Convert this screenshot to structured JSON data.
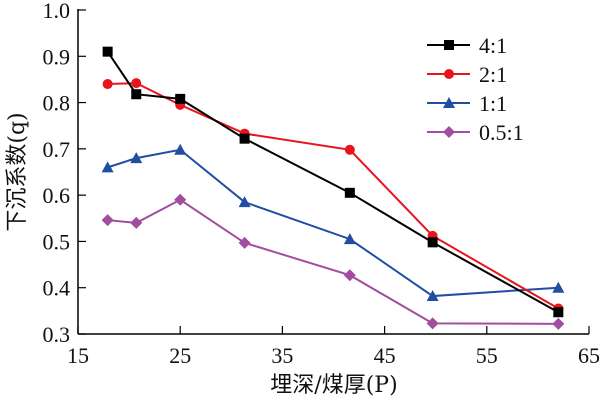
{
  "chart_data": {
    "type": "line",
    "title": "",
    "xlabel": "埋深/煤厚(P)",
    "ylabel": "下沉系数(q)",
    "xlim": [
      15,
      65
    ],
    "ylim": [
      0.3,
      1.0
    ],
    "xticks": [
      15,
      25,
      35,
      45,
      55,
      65
    ],
    "yticks": [
      0.3,
      0.4,
      0.5,
      0.6,
      0.7,
      0.8,
      0.9,
      1.0
    ],
    "xtick_labels": [
      "15",
      "25",
      "35",
      "45",
      "55",
      "65"
    ],
    "ytick_labels": [
      "0.3",
      "0.4",
      "0.5",
      "0.6",
      "0.7",
      "0.8",
      "0.9",
      "1.0"
    ],
    "grid": false,
    "legend_position": "top-right",
    "x": [
      17.9,
      20.7,
      25.0,
      31.3,
      41.6,
      49.7,
      62.0
    ],
    "series": [
      {
        "name": "4:1",
        "color": "#000000",
        "marker": "square",
        "values": [
          0.91,
          0.818,
          0.808,
          0.722,
          0.605,
          0.498,
          0.347
        ]
      },
      {
        "name": "2:1",
        "color": "#e8141c",
        "marker": "circle",
        "values": [
          0.84,
          0.842,
          0.795,
          0.733,
          0.698,
          0.512,
          0.355
        ]
      },
      {
        "name": "1:1",
        "color": "#1f4ea3",
        "marker": "triangle",
        "values": [
          0.66,
          0.68,
          0.698,
          0.585,
          0.505,
          0.382,
          0.4
        ]
      },
      {
        "name": "0.5:1",
        "color": "#a24ea0",
        "marker": "diamond",
        "values": [
          0.546,
          0.54,
          0.59,
          0.497,
          0.427,
          0.323,
          0.322
        ]
      }
    ]
  }
}
